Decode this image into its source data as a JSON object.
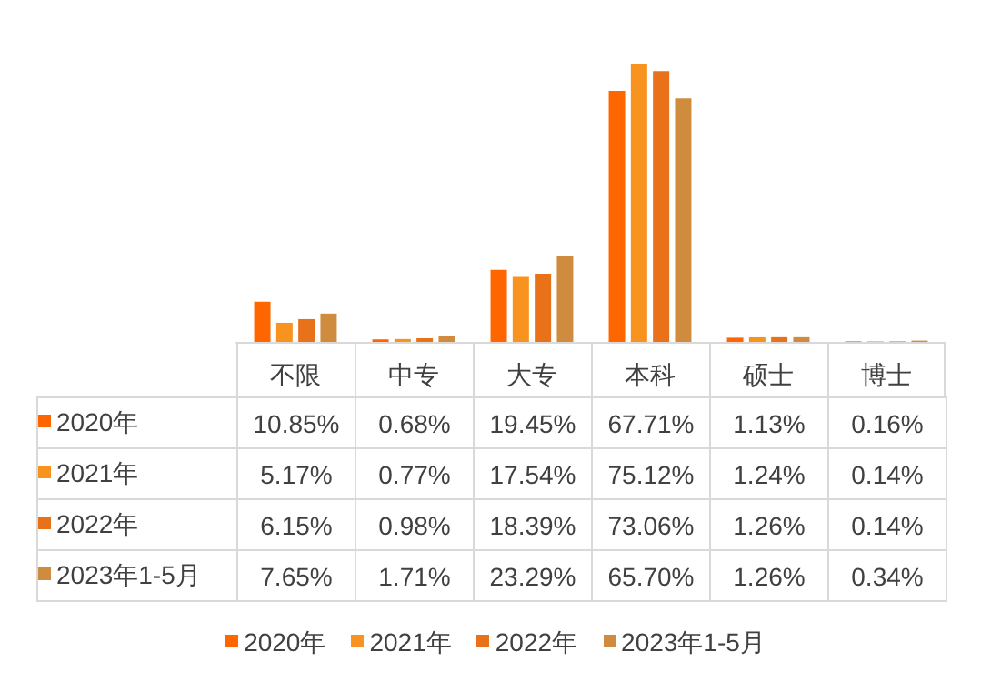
{
  "chart_data": {
    "type": "bar",
    "categories": [
      "不限",
      "中专",
      "大专",
      "本科",
      "硕士",
      "博士"
    ],
    "series": [
      {
        "name": "2020年",
        "color": "#ff6600",
        "values": [
          10.85,
          0.68,
          19.45,
          67.71,
          1.13,
          0.16
        ],
        "value_labels": [
          "10.85%",
          "0.68%",
          "19.45%",
          "67.71%",
          "1.13%",
          "0.16%"
        ]
      },
      {
        "name": "2021年",
        "color": "#f7931e",
        "values": [
          5.17,
          0.77,
          17.54,
          75.12,
          1.24,
          0.14
        ],
        "value_labels": [
          "5.17%",
          "0.77%",
          "17.54%",
          "75.12%",
          "1.24%",
          "0.14%"
        ]
      },
      {
        "name": "2022年",
        "color": "#e8711a",
        "values": [
          6.15,
          0.98,
          18.39,
          73.06,
          1.26,
          0.14
        ],
        "value_labels": [
          "6.15%",
          "0.98%",
          "18.39%",
          "73.06%",
          "1.26%",
          "0.14%"
        ]
      },
      {
        "name": "2023年1-5月",
        "color": "#d08c3e",
        "values": [
          7.65,
          1.71,
          23.29,
          65.7,
          1.26,
          0.34
        ],
        "value_labels": [
          "7.65%",
          "1.71%",
          "23.29%",
          "65.70%",
          "1.26%",
          "0.34%"
        ]
      }
    ],
    "legend": "bottom",
    "grid": false
  }
}
